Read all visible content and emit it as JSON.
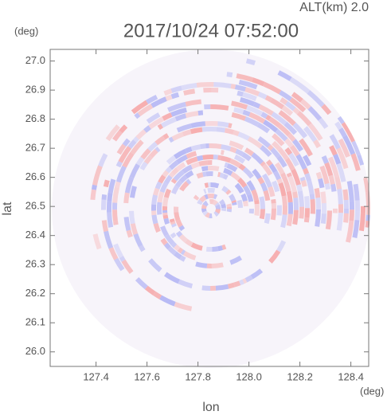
{
  "chart_data": {
    "type": "ppi",
    "altitude_label": "ALT(km) 2.0",
    "title": "2017/10/24 07:52:00",
    "y_unit": "(deg)",
    "x_unit": "(deg)",
    "y_label": "lat",
    "x_label": "lon",
    "xlim": [
      127.22,
      128.47
    ],
    "xticks": [
      127.4,
      127.6,
      127.8,
      {
        "value": 128,
        "label": "128.0"
      },
      128.2,
      128.4
    ],
    "ylim": [
      25.95,
      27.04
    ],
    "yticks": [
      {
        "value": 26,
        "label": "26.0"
      },
      26.1,
      26.2,
      26.3,
      26.4,
      26.5,
      26.6,
      26.7,
      26.8,
      26.9,
      {
        "value": 27,
        "label": "27.0"
      }
    ],
    "colors": [
      "#f6a9aa",
      "#b4b6f4"
    ]
  }
}
